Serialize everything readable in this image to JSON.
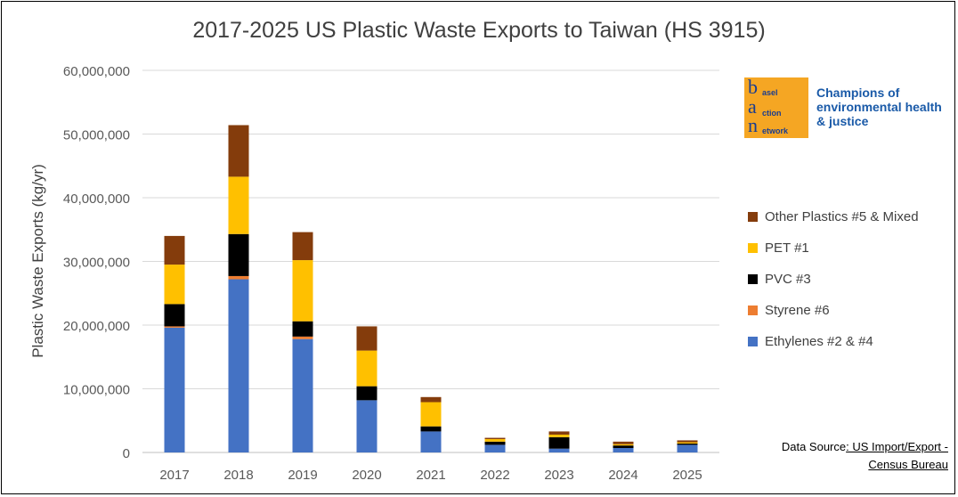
{
  "chart_data": {
    "type": "bar",
    "stacked": true,
    "title": "2017-2025 US Plastic Waste Exports to Taiwan (HS 3915)",
    "ylabel": "Plastic Waste Exports (kg/yr)",
    "xlabel": "",
    "ylim": [
      0,
      60000000
    ],
    "yticks": [
      0,
      10000000,
      20000000,
      30000000,
      40000000,
      50000000,
      60000000
    ],
    "ytick_labels": [
      "0",
      "10,000,000",
      "20,000,000",
      "30,000,000",
      "40,000,000",
      "50,000,000",
      "60,000,000"
    ],
    "grid": true,
    "legend_position": "right",
    "categories": [
      "2017",
      "2018",
      "2019",
      "2020",
      "2021",
      "2022",
      "2023",
      "2024",
      "2025"
    ],
    "series": [
      {
        "name": "Ethylenes #2 & #4",
        "color": "#4472c4",
        "values": [
          19600000,
          27200000,
          17800000,
          8200000,
          3300000,
          1200000,
          600000,
          700000,
          1200000
        ]
      },
      {
        "name": "Styrene #6",
        "color": "#ed7d31",
        "values": [
          200000,
          500000,
          400000,
          0,
          0,
          0,
          0,
          0,
          0
        ]
      },
      {
        "name": "PVC #3",
        "color": "#000000",
        "values": [
          3500000,
          6600000,
          2400000,
          2200000,
          800000,
          500000,
          1800000,
          400000,
          200000
        ]
      },
      {
        "name": "PET #1",
        "color": "#ffc000",
        "values": [
          6200000,
          9000000,
          9600000,
          5600000,
          3800000,
          400000,
          400000,
          200000,
          200000
        ]
      },
      {
        "name": "Other Plastics #5 & Mixed",
        "color": "#843c0c",
        "values": [
          4500000,
          8100000,
          4400000,
          3800000,
          800000,
          200000,
          500000,
          400000,
          300000
        ]
      }
    ]
  },
  "logo": {
    "letters": [
      "b",
      "a",
      "n"
    ],
    "words": [
      "asel",
      "ction",
      "etwork"
    ],
    "tagline": "Champions of environmental health & justice"
  },
  "source": {
    "prefix": "Data Source",
    "link_text": ": US Import/Export - Census Bureau"
  }
}
